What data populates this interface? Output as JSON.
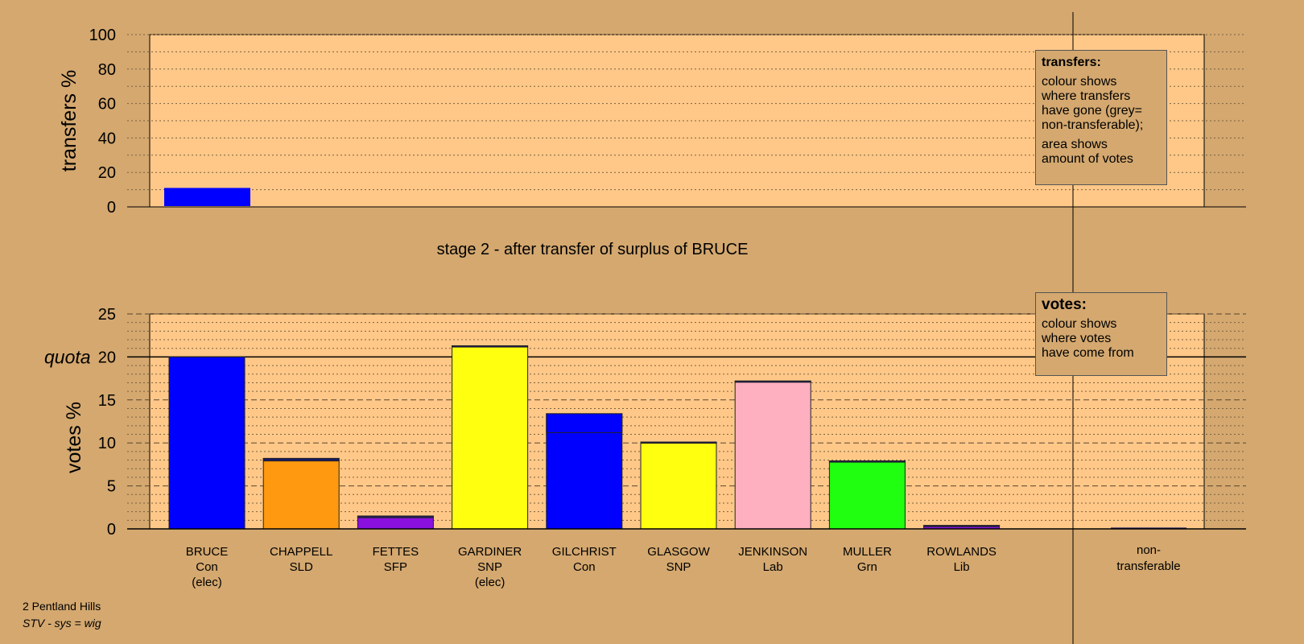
{
  "chart_data": [
    {
      "type": "bar",
      "name": "transfers",
      "ylabel": "transfers %",
      "ylim": [
        0,
        100
      ],
      "yticks": [
        0,
        20,
        40,
        60,
        80,
        100
      ],
      "grid": true,
      "series": [
        {
          "candidate": "BRUCE",
          "value": 11,
          "color": "#0000FF"
        }
      ]
    },
    {
      "type": "bar",
      "name": "votes",
      "title": "stage 2 - after transfer of surplus of BRUCE",
      "ylabel": "votes %",
      "ylim": [
        0,
        25
      ],
      "yticks": [
        0,
        5,
        10,
        15,
        20,
        25
      ],
      "quota": {
        "label": "quota",
        "value": 20
      },
      "grid": true,
      "categories": [
        {
          "name": "BRUCE",
          "party": "Con",
          "note": "(elec)",
          "value": 20.0,
          "color": "#0000FF",
          "segments": []
        },
        {
          "name": "CHAPPELL",
          "party": "SLD",
          "note": "",
          "value": 8.2,
          "color": "#FF9910",
          "segments": [
            {
              "value": 0.3,
              "color": "#1A1A66"
            }
          ]
        },
        {
          "name": "FETTES",
          "party": "SFP",
          "note": "",
          "value": 1.5,
          "color": "#8A10E0",
          "segments": [
            {
              "value": 0.2,
              "color": "#1A1A66"
            }
          ]
        },
        {
          "name": "GARDINER",
          "party": "SNP",
          "note": "(elec)",
          "value": 21.3,
          "color": "#FFFF10",
          "segments": [
            {
              "value": 0.15,
              "color": "#1A1A66"
            }
          ]
        },
        {
          "name": "GILCHRIST",
          "party": "Con",
          "note": "",
          "value": 13.4,
          "color": "#0000FF",
          "segments": [
            {
              "value": 2.2,
              "color": "#0000FF"
            }
          ]
        },
        {
          "name": "GLASGOW",
          "party": "SNP",
          "note": "",
          "value": 10.1,
          "color": "#FFFF10",
          "segments": [
            {
              "value": 0.1,
              "color": "#1A1A66"
            }
          ]
        },
        {
          "name": "JENKINSON",
          "party": "Lab",
          "note": "",
          "value": 17.2,
          "color": "#FFB0C0",
          "segments": [
            {
              "value": 0.15,
              "color": "#1A1A66"
            }
          ]
        },
        {
          "name": "MULLER",
          "party": "Grn",
          "note": "",
          "value": 7.9,
          "color": "#20FF10",
          "segments": [
            {
              "value": 0.1,
              "color": "#1A1A66"
            }
          ]
        },
        {
          "name": "ROWLANDS",
          "party": "Lib",
          "note": "",
          "value": 0.4,
          "color": "#8A10E0",
          "segments": [
            {
              "value": 0.1,
              "color": "#1A1A66"
            }
          ]
        }
      ],
      "nontransferable": {
        "line1": "non-",
        "line2": "transferable",
        "value": 0.15,
        "color": "#1A1A66"
      }
    }
  ],
  "legends": {
    "transfers": {
      "title": "transfers:",
      "lines1": [
        "colour shows",
        "where transfers",
        "have gone (grey=",
        "non-transferable);"
      ],
      "lines2": [
        "area shows",
        "amount of votes"
      ]
    },
    "votes": {
      "title": "votes:",
      "lines1": [
        "colour shows",
        "where votes",
        "have come from"
      ]
    }
  },
  "footer": {
    "constituency": "2 Pentland Hills",
    "system": "STV - sys = wig"
  },
  "colors": {
    "background": "#D4A86F",
    "plot_area": "#FFC888"
  }
}
